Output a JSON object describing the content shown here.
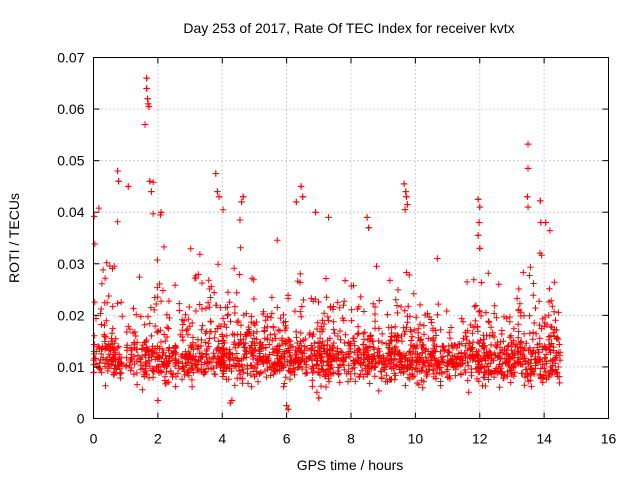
{
  "chart_data": {
    "type": "scatter",
    "title": "Day 253 of 2017, Rate Of TEC Index for receiver kvtx",
    "xlabel": "GPS time / hours",
    "ylabel": "ROTI / TECUs",
    "xlim": [
      0,
      16
    ],
    "ylim": [
      0,
      0.07
    ],
    "x_ticks": [
      "0",
      "2",
      "4",
      "6",
      "8",
      "10",
      "12",
      "14",
      "16"
    ],
    "y_ticks": [
      "0",
      "0.01",
      "0.02",
      "0.03",
      "0.04",
      "0.05",
      "0.06",
      "0.07"
    ],
    "grid": true,
    "marker": "plus",
    "color": "#ff0000",
    "data_coverage_hours": [
      0,
      14.5
    ],
    "data_gap_hours": [
      0.9,
      1.0
    ],
    "highlight_points": [
      {
        "x": 1.65,
        "y": 0.066
      },
      {
        "x": 1.65,
        "y": 0.064
      },
      {
        "x": 1.68,
        "y": 0.062
      },
      {
        "x": 1.7,
        "y": 0.061
      },
      {
        "x": 1.72,
        "y": 0.0605
      },
      {
        "x": 1.6,
        "y": 0.057
      },
      {
        "x": 1.75,
        "y": 0.046
      },
      {
        "x": 1.8,
        "y": 0.044
      },
      {
        "x": 2.1,
        "y": 0.04
      },
      {
        "x": 0.75,
        "y": 0.048
      },
      {
        "x": 0.78,
        "y": 0.046
      },
      {
        "x": 1.08,
        "y": 0.045
      },
      {
        "x": 3.8,
        "y": 0.0475
      },
      {
        "x": 3.85,
        "y": 0.044
      },
      {
        "x": 3.9,
        "y": 0.043
      },
      {
        "x": 4.65,
        "y": 0.043
      },
      {
        "x": 4.6,
        "y": 0.042
      },
      {
        "x": 4.55,
        "y": 0.0385
      },
      {
        "x": 6.45,
        "y": 0.045
      },
      {
        "x": 6.5,
        "y": 0.043
      },
      {
        "x": 6.3,
        "y": 0.042
      },
      {
        "x": 6.9,
        "y": 0.04
      },
      {
        "x": 7.3,
        "y": 0.039
      },
      {
        "x": 8.5,
        "y": 0.039
      },
      {
        "x": 8.55,
        "y": 0.037
      },
      {
        "x": 9.65,
        "y": 0.0455
      },
      {
        "x": 9.7,
        "y": 0.044
      },
      {
        "x": 9.72,
        "y": 0.043
      },
      {
        "x": 9.75,
        "y": 0.0415
      },
      {
        "x": 9.68,
        "y": 0.0405
      },
      {
        "x": 11.95,
        "y": 0.0425
      },
      {
        "x": 12.0,
        "y": 0.041
      },
      {
        "x": 11.98,
        "y": 0.038
      },
      {
        "x": 11.95,
        "y": 0.0355
      },
      {
        "x": 12.0,
        "y": 0.033
      },
      {
        "x": 13.5,
        "y": 0.0532
      },
      {
        "x": 13.5,
        "y": 0.0485
      },
      {
        "x": 13.48,
        "y": 0.043
      },
      {
        "x": 13.5,
        "y": 0.041
      },
      {
        "x": 13.88,
        "y": 0.0422
      },
      {
        "x": 14.05,
        "y": 0.038
      },
      {
        "x": 13.9,
        "y": 0.038
      },
      {
        "x": 6.0,
        "y": 0.0025
      },
      {
        "x": 6.05,
        "y": 0.0018
      },
      {
        "x": 4.25,
        "y": 0.003
      },
      {
        "x": 4.3,
        "y": 0.0035
      },
      {
        "x": 2.0,
        "y": 0.0035
      },
      {
        "x": 7.0,
        "y": 0.004
      }
    ]
  }
}
